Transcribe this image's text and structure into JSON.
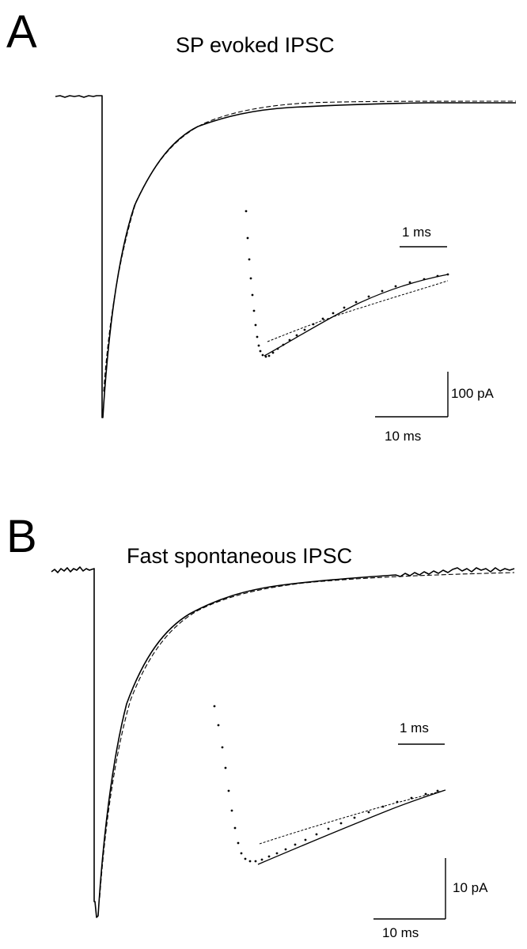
{
  "panels": [
    {
      "letter": "A",
      "title": "SP evoked IPSC",
      "inset_scale_label": "1 ms",
      "amp_scale_label": "100 pA",
      "time_scale_label": "10 ms"
    },
    {
      "letter": "B",
      "title": "Fast spontaneous IPSC",
      "inset_scale_label": "1 ms",
      "amp_scale_label": "10 pA",
      "time_scale_label": "10 ms"
    }
  ]
}
